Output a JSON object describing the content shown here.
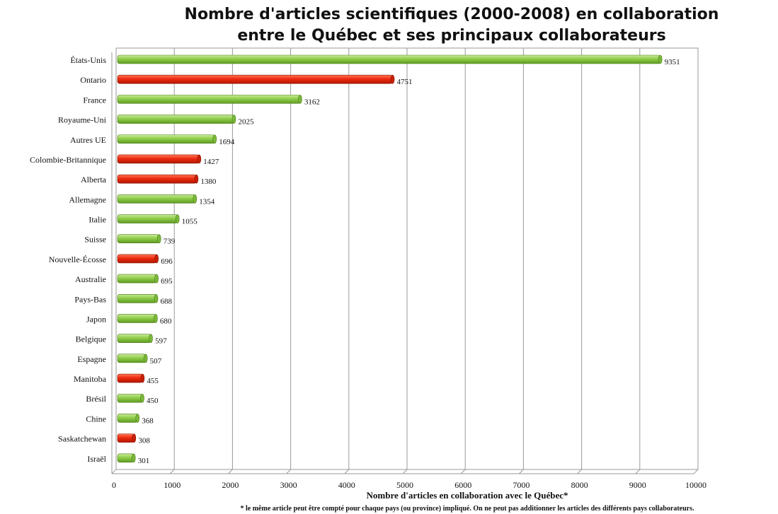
{
  "chart_data": {
    "type": "bar",
    "orientation": "horizontal",
    "title_line1": "Nombre d'articles scientifiques (2000-2008)  en collaboration",
    "title_line2": "entre le Québec et ses principaux collaborateurs",
    "xlabel": "Nombre d'articles en collaboration avec le Québec*",
    "footnote": "* le même article peut être compté pour chaque pays (ou province) impliqué. On ne peut pas additionner les articles des différents pays collaborateurs.",
    "xlim": [
      0,
      10000
    ],
    "x_ticks": [
      0,
      1000,
      2000,
      3000,
      4000,
      5000,
      6000,
      7000,
      8000,
      9000,
      10000
    ],
    "grid": true,
    "colors": {
      "pays": "#8fcd4a",
      "province": "#ee2a10"
    },
    "categories": [
      "États-Unis",
      "Ontario",
      "France",
      "Royaume-Uni",
      "Autres UE",
      "Colombie-Britannique",
      "Alberta",
      "Allemagne",
      "Italie",
      "Suisse",
      "Nouvelle-Écosse",
      "Australie",
      "Pays-Bas",
      "Japon",
      "Belgique",
      "Espagne",
      "Manitoba",
      "Brésil",
      "Chine",
      "Saskatchewan",
      "Israël"
    ],
    "values": [
      9351,
      4751,
      3162,
      2025,
      1694,
      1427,
      1380,
      1354,
      1055,
      739,
      696,
      695,
      688,
      680,
      597,
      507,
      455,
      450,
      368,
      308,
      301
    ],
    "kind": [
      "pays",
      "province",
      "pays",
      "pays",
      "pays",
      "province",
      "province",
      "pays",
      "pays",
      "pays",
      "province",
      "pays",
      "pays",
      "pays",
      "pays",
      "pays",
      "province",
      "pays",
      "pays",
      "province",
      "pays"
    ]
  }
}
